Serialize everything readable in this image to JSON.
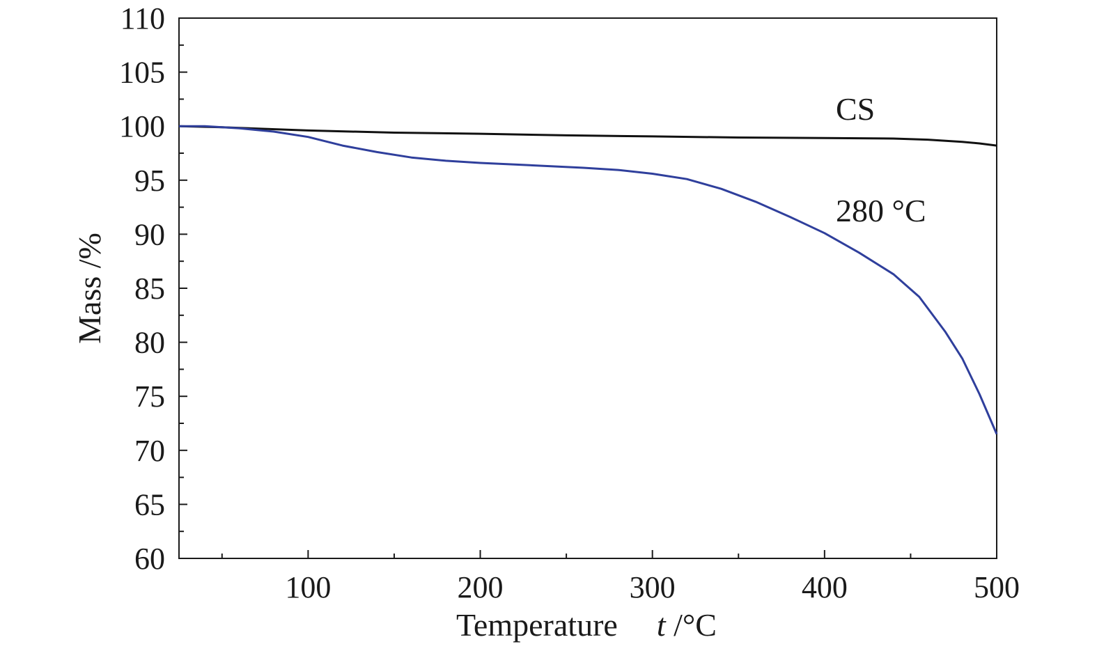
{
  "chart_data": {
    "type": "line",
    "xlabel": "Temperature",
    "xlabel_symbol": "t",
    "xlabel_unit": " /°C",
    "ylabel": "Mass /%",
    "xlim": [
      25,
      500
    ],
    "ylim": [
      60,
      110
    ],
    "x_ticks": [
      100,
      200,
      300,
      400,
      500
    ],
    "y_ticks": [
      60,
      65,
      70,
      75,
      80,
      85,
      90,
      95,
      100,
      105,
      110
    ],
    "grid": false,
    "series": [
      {
        "name": "CS",
        "color": "#111111",
        "points": [
          [
            25,
            100.0
          ],
          [
            50,
            99.9
          ],
          [
            75,
            99.75
          ],
          [
            100,
            99.6
          ],
          [
            150,
            99.4
          ],
          [
            200,
            99.3
          ],
          [
            250,
            99.15
          ],
          [
            300,
            99.05
          ],
          [
            350,
            98.95
          ],
          [
            400,
            98.9
          ],
          [
            440,
            98.85
          ],
          [
            460,
            98.75
          ],
          [
            480,
            98.55
          ],
          [
            490,
            98.4
          ],
          [
            500,
            98.2
          ]
        ]
      },
      {
        "name": "280 °C",
        "color": "#2f3f9c",
        "points": [
          [
            25,
            100.0
          ],
          [
            40,
            100.0
          ],
          [
            60,
            99.8
          ],
          [
            80,
            99.5
          ],
          [
            100,
            99.0
          ],
          [
            120,
            98.2
          ],
          [
            140,
            97.6
          ],
          [
            160,
            97.1
          ],
          [
            180,
            96.8
          ],
          [
            200,
            96.6
          ],
          [
            220,
            96.45
          ],
          [
            240,
            96.3
          ],
          [
            260,
            96.15
          ],
          [
            280,
            95.95
          ],
          [
            300,
            95.6
          ],
          [
            320,
            95.1
          ],
          [
            340,
            94.2
          ],
          [
            360,
            93.0
          ],
          [
            380,
            91.6
          ],
          [
            400,
            90.1
          ],
          [
            420,
            88.3
          ],
          [
            440,
            86.3
          ],
          [
            455,
            84.2
          ],
          [
            470,
            81.0
          ],
          [
            480,
            78.5
          ],
          [
            490,
            75.2
          ],
          [
            500,
            71.5
          ]
        ]
      }
    ]
  }
}
